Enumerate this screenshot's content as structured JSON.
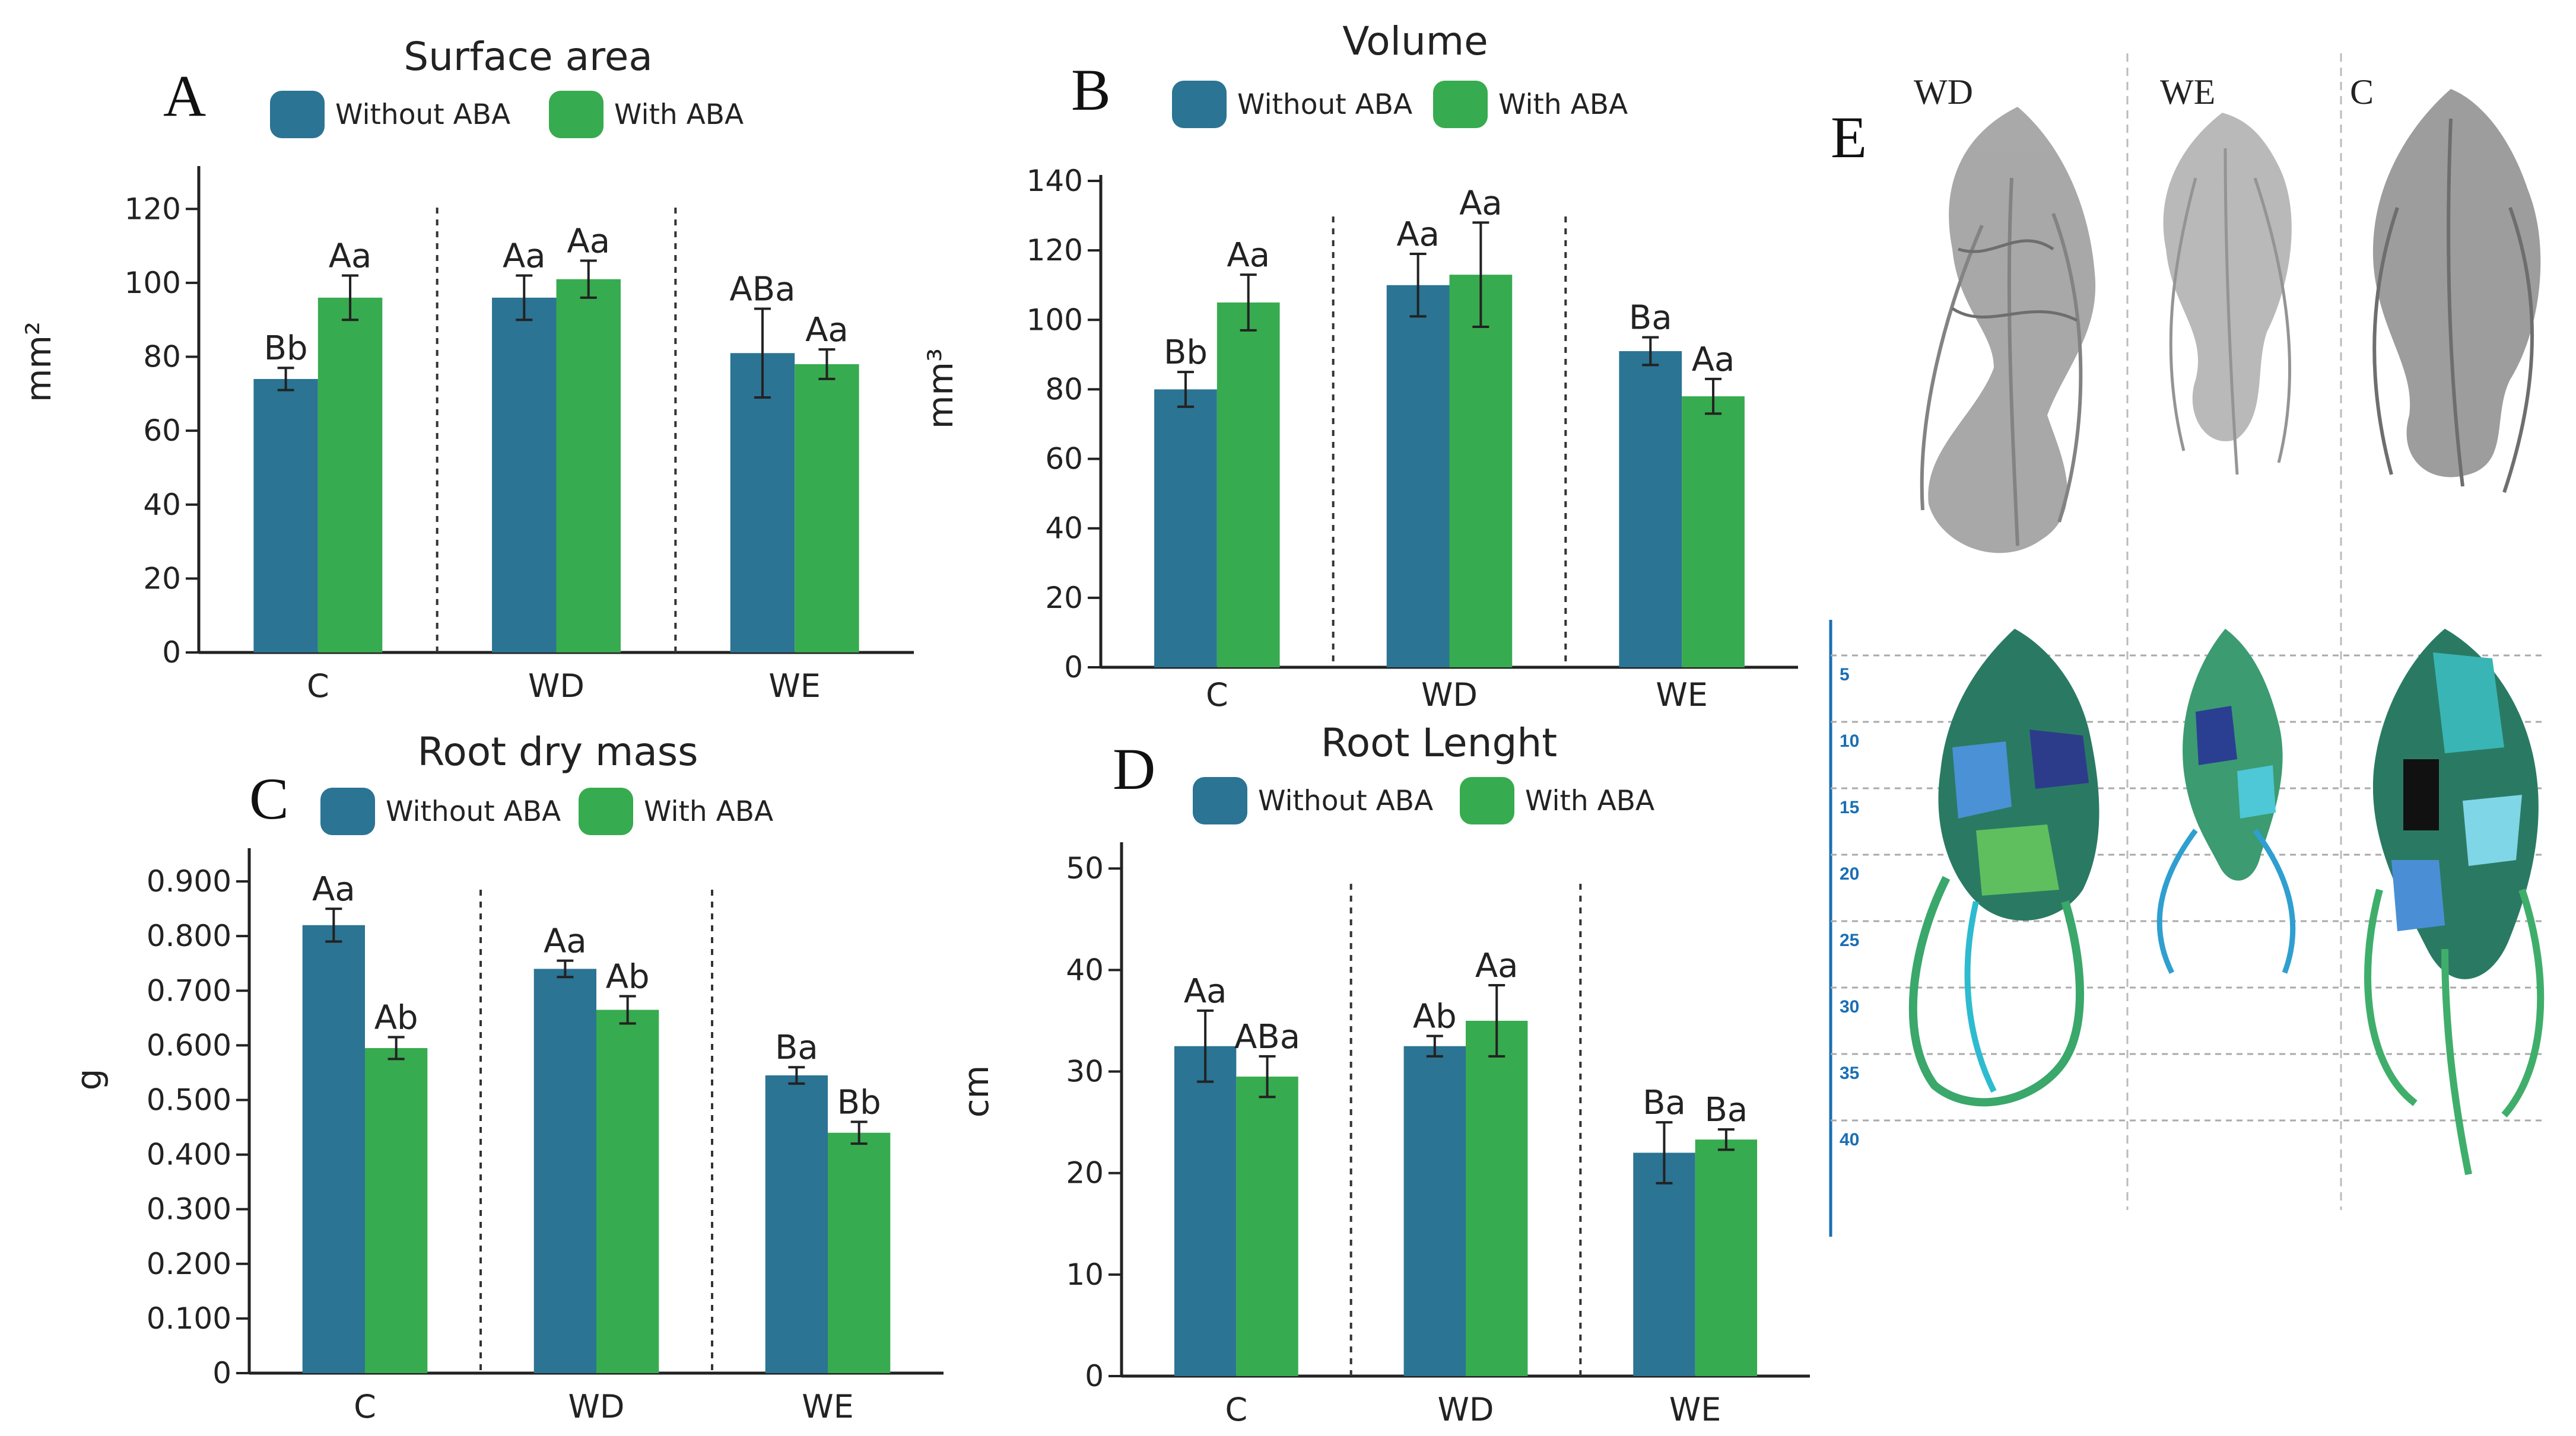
{
  "colors": {
    "without_aba": "#2b7493",
    "with_aba": "#37ab4f",
    "root_gray": "#7b7b7b",
    "depth_blue": "#1a6fb5"
  },
  "legend": {
    "without": "Without ABA",
    "with": "With ABA"
  },
  "chart_data": [
    {
      "panel": "A",
      "type": "bar",
      "title": "Surface area",
      "ylabel": "mm²",
      "categories": [
        "C",
        "WD",
        "WE"
      ],
      "yticks": [
        0,
        20,
        40,
        60,
        80,
        100,
        120
      ],
      "ytick_labels": [
        "0",
        "20",
        "40",
        "60",
        "80",
        "100",
        "120"
      ],
      "ylim": [
        0,
        130
      ],
      "series": [
        {
          "name": "Without ABA",
          "values": [
            74,
            96,
            81
          ],
          "errors": [
            3,
            6,
            12
          ],
          "letters": [
            "Bb",
            "Aa",
            "ABa"
          ]
        },
        {
          "name": "With ABA",
          "values": [
            96,
            101,
            78
          ],
          "errors": [
            6,
            5,
            4
          ],
          "letters": [
            "Aa",
            "Aa",
            "Aa"
          ]
        }
      ]
    },
    {
      "panel": "B",
      "type": "bar",
      "title": "Volume",
      "ylabel": "mm³",
      "categories": [
        "C",
        "WD",
        "WE"
      ],
      "yticks": [
        0,
        20,
        40,
        60,
        80,
        100,
        120,
        140
      ],
      "ytick_labels": [
        "0",
        "20",
        "40",
        "60",
        "80",
        "100",
        "120",
        "140"
      ],
      "ylim": [
        0,
        140
      ],
      "series": [
        {
          "name": "Without ABA",
          "values": [
            80,
            110,
            91
          ],
          "errors": [
            5,
            9,
            4
          ],
          "letters": [
            "Bb",
            "Aa",
            "Ba"
          ]
        },
        {
          "name": "With ABA",
          "values": [
            105,
            113,
            78
          ],
          "errors": [
            8,
            15,
            5
          ],
          "letters": [
            "Aa",
            "Aa",
            "Aa"
          ]
        }
      ]
    },
    {
      "panel": "C",
      "type": "bar",
      "title": "Root dry mass",
      "ylabel": "g",
      "categories": [
        "C",
        "WD",
        "WE"
      ],
      "yticks": [
        0,
        0.1,
        0.2,
        0.3,
        0.4,
        0.5,
        0.6,
        0.7,
        0.8,
        0.9
      ],
      "ytick_labels": [
        "0",
        "0.100",
        "0.200",
        "0.300",
        "0.400",
        "0.500",
        "0.600",
        "0.700",
        "0.800",
        "0.900"
      ],
      "ylim": [
        0,
        0.95
      ],
      "series": [
        {
          "name": "Without ABA",
          "values": [
            0.82,
            0.74,
            0.545
          ],
          "errors": [
            0.03,
            0.015,
            0.015
          ],
          "letters": [
            "Aa",
            "Aa",
            "Ba"
          ]
        },
        {
          "name": "With ABA",
          "values": [
            0.595,
            0.665,
            0.44
          ],
          "errors": [
            0.02,
            0.025,
            0.02
          ],
          "letters": [
            "Ab",
            "Ab",
            "Bb"
          ]
        }
      ]
    },
    {
      "panel": "D",
      "type": "bar",
      "title": "Root Lenght",
      "ylabel": "cm",
      "categories": [
        "C",
        "WD",
        "WE"
      ],
      "yticks": [
        0,
        10,
        20,
        30,
        40,
        50
      ],
      "ytick_labels": [
        "0",
        "10",
        "20",
        "30",
        "40",
        "50"
      ],
      "ylim": [
        0,
        52
      ],
      "series": [
        {
          "name": "Without ABA",
          "values": [
            32.5,
            32.5,
            22
          ],
          "errors": [
            3.5,
            1,
            3
          ],
          "letters": [
            "Aa",
            "Ab",
            "Ba"
          ]
        },
        {
          "name": "With ABA",
          "values": [
            29.5,
            35,
            23.3
          ],
          "errors": [
            2,
            3.5,
            1
          ],
          "letters": [
            "ABa",
            "Aa",
            "Ba"
          ]
        }
      ]
    }
  ],
  "panel_e": {
    "letter": "E",
    "labels": [
      "WD",
      "WE",
      "C"
    ],
    "depth_ticks": [
      "5",
      "10",
      "15",
      "20",
      "25",
      "30",
      "35",
      "40"
    ]
  }
}
